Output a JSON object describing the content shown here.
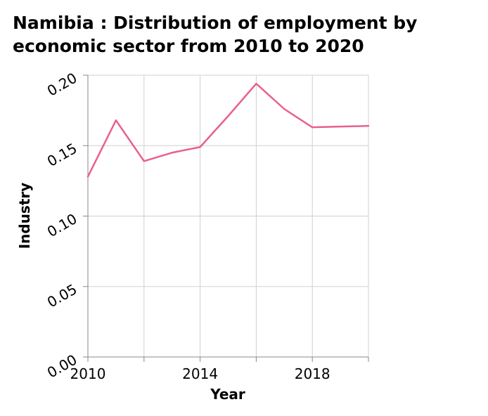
{
  "chart_data": {
    "type": "line",
    "title": "Namibia : Distribution of employment by economic sector from 2010 to 2020",
    "xlabel": "Year",
    "ylabel": "Industry",
    "xlim": [
      2010,
      2020
    ],
    "ylim": [
      0,
      0.2
    ],
    "x_ticks": [
      2010,
      2014,
      2018
    ],
    "x_tick_labels": [
      "2010",
      "2014",
      "2018"
    ],
    "y_ticks": [
      0,
      0.05,
      0.1,
      0.15,
      0.2
    ],
    "y_tick_labels": [
      "0.00",
      "0.05",
      "0.10",
      "0.15",
      "0.20"
    ],
    "grid": true,
    "series": [
      {
        "color": "#e8608f",
        "x": [
          2010,
          2011,
          2012,
          2013,
          2014,
          2015,
          2016,
          2017,
          2018,
          2019,
          2020
        ],
        "values": [
          0.128,
          0.168,
          0.139,
          0.145,
          0.149,
          0.171,
          0.194,
          0.176,
          0.163,
          0.1635,
          0.164
        ]
      }
    ]
  }
}
